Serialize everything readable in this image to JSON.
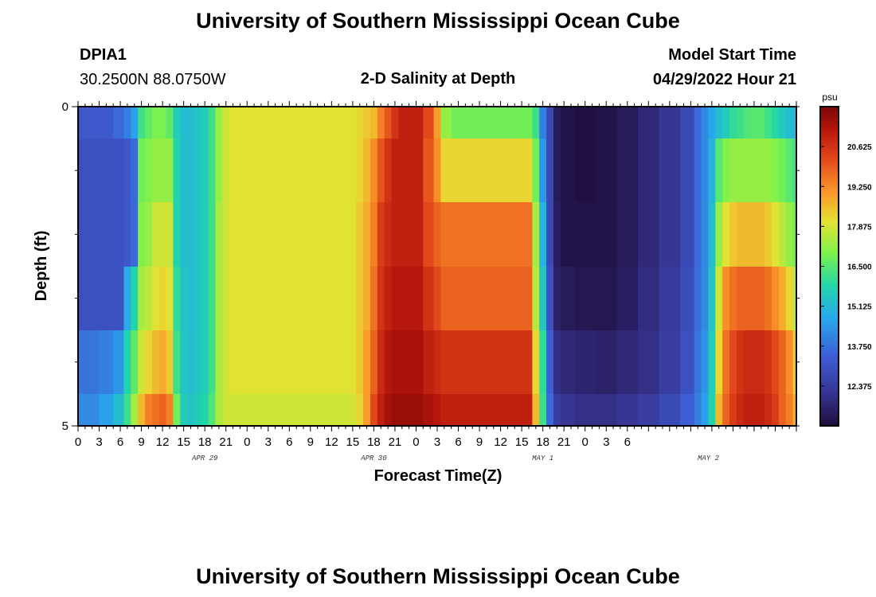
{
  "titles": {
    "top": "University of Southern Mississippi Ocean Cube",
    "bottom": "University of Southern Mississippi Ocean Cube"
  },
  "station": {
    "id": "DPIA1",
    "coords": "30.2500N  88.0750W"
  },
  "model": {
    "label": "Model Start Time",
    "time": "04/29/2022 Hour 21"
  },
  "chart_data": {
    "type": "heatmap",
    "title": "2-D Salinity at Depth",
    "xlabel": "Forecast Time(Z)",
    "ylabel": "Depth (ft)",
    "y_tick_labels": [
      "0",
      "5"
    ],
    "ylim": [
      0,
      5
    ],
    "x_tick_labels": [
      "0",
      "3",
      "6",
      "9",
      "12",
      "15",
      "18",
      "21",
      "0",
      "3",
      "6",
      "9",
      "12",
      "15",
      "18",
      "21",
      "0",
      "3",
      "6",
      "9",
      "12",
      "15",
      "18",
      "21",
      "0",
      "3",
      "6"
    ],
    "day_labels": [
      "APR 29",
      "APR 30",
      "MAY 1",
      "MAY 2"
    ],
    "colorbar": {
      "unit": "psu",
      "ticks": [
        "20.625",
        "19.250",
        "17.875",
        "16.500",
        "15.125",
        "13.750",
        "12.375"
      ],
      "range": [
        11.0,
        22.0
      ]
    },
    "x_hours": [
      0,
      2,
      4,
      6,
      7,
      8,
      9,
      10,
      11,
      12,
      13,
      14,
      15,
      16,
      17,
      18,
      19,
      20,
      21,
      22,
      24,
      27,
      30,
      33,
      36,
      39,
      40,
      41,
      42,
      43,
      44,
      45,
      46,
      48,
      50,
      51,
      52,
      54,
      57,
      60,
      63,
      64,
      65,
      66,
      67,
      68,
      69,
      72,
      75,
      78,
      81,
      84,
      87,
      88,
      89,
      90,
      91,
      92,
      93,
      94,
      95,
      96,
      97,
      98,
      99,
      100,
      101,
      102
    ],
    "depth_layers": [
      "0-0.5",
      "0.5-1.5",
      "1.5-2.5",
      "2.5-3.5",
      "3.5-4.5",
      "4.5-5"
    ],
    "values": [
      [
        13.2,
        13.2,
        13.2,
        13.6,
        14.0,
        14.6,
        16.2,
        16.6,
        16.9,
        16.9,
        16.6,
        15.6,
        15.2,
        15.2,
        15.4,
        15.6,
        16.2,
        17.2,
        17.8,
        18.0,
        18.0,
        18.0,
        18.0,
        18.0,
        18.0,
        18.0,
        18.2,
        18.4,
        18.6,
        19.4,
        20.0,
        20.6,
        21.0,
        21.0,
        20.2,
        19.0,
        17.2,
        16.8,
        16.8,
        16.8,
        16.8,
        16.8,
        16.2,
        14.0,
        12.8,
        11.4,
        11.2,
        11.1,
        11.2,
        11.4,
        11.8,
        12.2,
        12.8,
        13.6,
        14.2,
        14.7,
        15.2,
        15.6,
        16.0,
        16.2,
        16.4,
        16.5,
        16.5,
        16.2,
        15.9,
        15.5,
        15.2,
        15.0
      ],
      [
        13.0,
        13.0,
        13.0,
        13.0,
        13.2,
        13.6,
        16.8,
        17.0,
        17.2,
        17.2,
        17.2,
        15.8,
        15.2,
        15.2,
        15.4,
        15.6,
        16.2,
        17.2,
        17.8,
        18.0,
        18.0,
        18.0,
        18.0,
        18.0,
        18.0,
        18.0,
        18.2,
        18.6,
        19.2,
        20.0,
        20.6,
        21.0,
        21.0,
        21.0,
        20.0,
        19.2,
        18.2,
        18.2,
        18.2,
        18.2,
        18.2,
        18.2,
        16.8,
        14.4,
        12.8,
        11.4,
        11.2,
        11.1,
        11.2,
        11.4,
        11.8,
        12.2,
        12.8,
        13.6,
        14.2,
        15.0,
        16.5,
        17.0,
        17.2,
        17.2,
        17.2,
        17.2,
        17.2,
        17.2,
        17.0,
        16.8,
        16.5,
        16.2
      ],
      [
        13.0,
        13.0,
        13.0,
        13.0,
        13.2,
        13.6,
        17.0,
        17.2,
        17.8,
        17.8,
        17.8,
        15.8,
        15.2,
        15.2,
        15.4,
        15.6,
        16.2,
        17.4,
        17.8,
        18.0,
        18.0,
        18.0,
        18.0,
        18.0,
        18.0,
        18.0,
        18.4,
        18.8,
        19.4,
        20.4,
        20.8,
        21.0,
        21.0,
        21.0,
        20.2,
        19.8,
        19.6,
        19.6,
        19.6,
        19.6,
        19.6,
        19.6,
        17.4,
        15.0,
        12.8,
        11.5,
        11.2,
        11.2,
        11.2,
        11.4,
        11.8,
        12.2,
        12.8,
        13.6,
        14.2,
        15.2,
        17.2,
        18.0,
        18.4,
        18.6,
        18.6,
        18.6,
        18.6,
        18.4,
        18.0,
        17.6,
        17.2,
        16.8
      ],
      [
        13.0,
        13.0,
        13.0,
        13.0,
        14.8,
        15.8,
        17.4,
        17.6,
        18.0,
        18.2,
        18.0,
        16.0,
        15.4,
        15.2,
        15.4,
        15.6,
        16.2,
        17.4,
        17.8,
        18.0,
        18.0,
        18.0,
        18.0,
        18.0,
        18.0,
        18.0,
        18.4,
        18.8,
        19.6,
        20.6,
        21.0,
        21.2,
        21.2,
        21.2,
        20.6,
        20.2,
        19.8,
        19.8,
        19.8,
        19.8,
        19.8,
        19.8,
        17.6,
        15.4,
        13.0,
        11.6,
        11.4,
        11.3,
        11.3,
        11.5,
        11.9,
        12.3,
        12.9,
        13.7,
        14.2,
        15.4,
        17.8,
        19.2,
        19.6,
        19.8,
        19.8,
        19.8,
        19.8,
        19.6,
        19.2,
        18.8,
        18.2,
        17.6
      ],
      [
        13.8,
        13.8,
        14.0,
        14.4,
        15.8,
        16.6,
        17.8,
        18.2,
        18.6,
        18.8,
        18.4,
        16.2,
        15.4,
        15.2,
        15.4,
        15.6,
        16.2,
        17.4,
        17.8,
        18.0,
        18.0,
        18.0,
        18.0,
        18.0,
        18.0,
        18.0,
        18.4,
        19.0,
        19.8,
        20.8,
        21.2,
        21.4,
        21.4,
        21.4,
        21.0,
        20.8,
        20.6,
        20.6,
        20.6,
        20.6,
        20.6,
        20.6,
        18.2,
        16.0,
        13.4,
        12.0,
        11.8,
        11.7,
        11.6,
        11.8,
        12.0,
        12.4,
        13.0,
        13.8,
        14.4,
        15.6,
        18.2,
        19.6,
        20.2,
        20.6,
        20.8,
        20.8,
        20.8,
        20.6,
        20.2,
        19.8,
        19.2,
        18.4
      ],
      [
        14.2,
        14.2,
        14.6,
        15.2,
        16.2,
        17.4,
        18.6,
        19.4,
        19.6,
        19.8,
        19.4,
        16.8,
        15.6,
        15.4,
        15.6,
        15.8,
        16.4,
        17.4,
        17.8,
        17.8,
        17.8,
        17.8,
        17.8,
        17.8,
        17.8,
        17.8,
        18.2,
        19.0,
        20.2,
        21.0,
        21.4,
        21.6,
        21.6,
        21.6,
        21.4,
        21.2,
        21.0,
        21.0,
        21.0,
        21.0,
        21.0,
        21.0,
        18.6,
        16.2,
        13.6,
        12.4,
        12.2,
        12.0,
        12.0,
        12.2,
        12.4,
        12.8,
        13.4,
        14.0,
        14.6,
        15.8,
        18.6,
        19.8,
        20.4,
        20.8,
        21.0,
        21.0,
        21.0,
        20.8,
        20.4,
        19.8,
        19.4,
        18.8
      ]
    ]
  }
}
